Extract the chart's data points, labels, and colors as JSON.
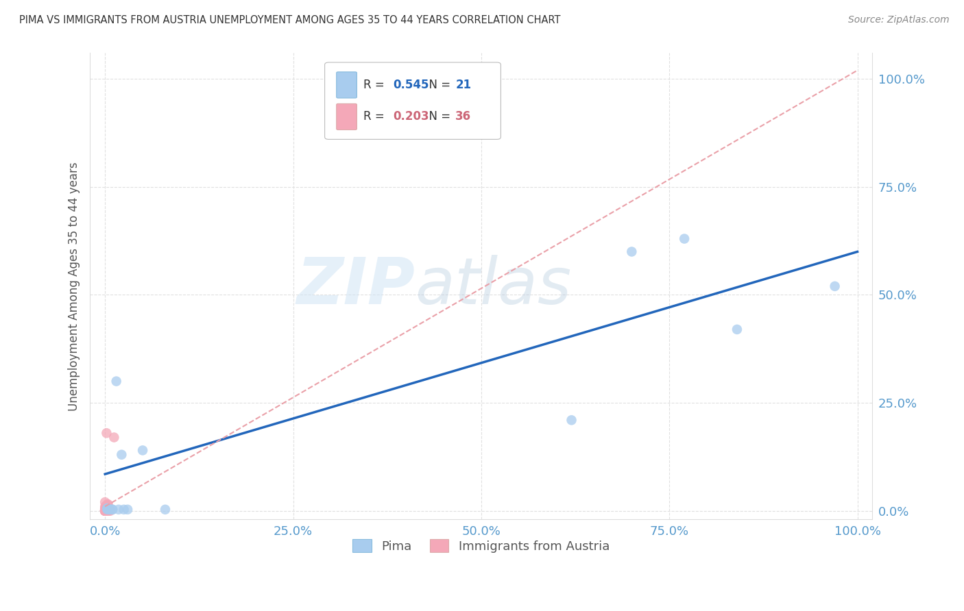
{
  "title": "PIMA VS IMMIGRANTS FROM AUSTRIA UNEMPLOYMENT AMONG AGES 35 TO 44 YEARS CORRELATION CHART",
  "source": "Source: ZipAtlas.com",
  "ylabel": "Unemployment Among Ages 35 to 44 years",
  "xlim": [
    -0.02,
    1.02
  ],
  "ylim": [
    -0.02,
    1.06
  ],
  "xticks": [
    0.0,
    0.25,
    0.5,
    0.75,
    1.0
  ],
  "yticks": [
    0.0,
    0.25,
    0.5,
    0.75,
    1.0
  ],
  "xtick_labels": [
    "0.0%",
    "25.0%",
    "50.0%",
    "75.0%",
    "100.0%"
  ],
  "ytick_labels": [
    "0.0%",
    "25.0%",
    "50.0%",
    "75.0%",
    "100.0%"
  ],
  "pima_color": "#A8CCEE",
  "austria_color": "#F4A8B8",
  "pima_label": "Pima",
  "austria_label": "Immigrants from Austria",
  "pima_R": "0.545",
  "pima_N": "21",
  "austria_R": "0.203",
  "austria_N": "36",
  "pima_x": [
    0.003,
    0.003,
    0.003,
    0.003,
    0.005,
    0.006,
    0.008,
    0.01,
    0.01,
    0.015,
    0.018,
    0.022,
    0.025,
    0.03,
    0.05,
    0.08,
    0.62,
    0.7,
    0.77,
    0.84,
    0.97
  ],
  "pima_y": [
    0.003,
    0.004,
    0.005,
    0.006,
    0.003,
    0.003,
    0.003,
    0.003,
    0.003,
    0.3,
    0.003,
    0.13,
    0.003,
    0.003,
    0.14,
    0.003,
    0.21,
    0.6,
    0.63,
    0.42,
    0.52
  ],
  "austria_x": [
    0.0,
    0.0,
    0.0,
    0.0,
    0.0,
    0.0,
    0.0,
    0.0,
    0.0,
    0.0,
    0.0,
    0.0,
    0.0,
    0.0,
    0.0,
    0.0,
    0.0,
    0.0,
    0.0,
    0.0,
    0.001,
    0.001,
    0.002,
    0.002,
    0.002,
    0.003,
    0.003,
    0.003,
    0.004,
    0.004,
    0.004,
    0.004,
    0.005,
    0.005,
    0.007,
    0.012
  ],
  "austria_y": [
    0.0,
    0.0,
    0.0,
    0.0,
    0.0,
    0.0,
    0.0,
    0.0,
    0.0,
    0.0,
    0.0,
    0.0,
    0.0,
    0.0,
    0.0,
    0.003,
    0.004,
    0.006,
    0.01,
    0.02,
    0.0,
    0.003,
    0.0,
    0.005,
    0.18,
    0.003,
    0.01,
    0.015,
    0.0,
    0.003,
    0.01,
    0.015,
    0.0,
    0.005,
    0.0,
    0.17
  ],
  "pima_trend_x0": 0.0,
  "pima_trend_x1": 1.0,
  "pima_trend_y0": 0.085,
  "pima_trend_y1": 0.6,
  "austria_trend_x0": 0.0,
  "austria_trend_x1": 1.0,
  "austria_trend_y0": 0.01,
  "austria_trend_y1": 1.02,
  "pima_trend_color": "#2266BB",
  "austria_trend_color": "#EAA0A8",
  "watermark_zip": "ZIP",
  "watermark_atlas": "atlas",
  "bg_color": "#FFFFFF",
  "grid_color": "#DDDDDD",
  "title_color": "#333333",
  "axis_label_color": "#555555",
  "tick_color": "#5599CC",
  "marker_size": 110,
  "legend_box_color": "#AACCEE",
  "legend_austria_box_color": "#F4A8B8"
}
